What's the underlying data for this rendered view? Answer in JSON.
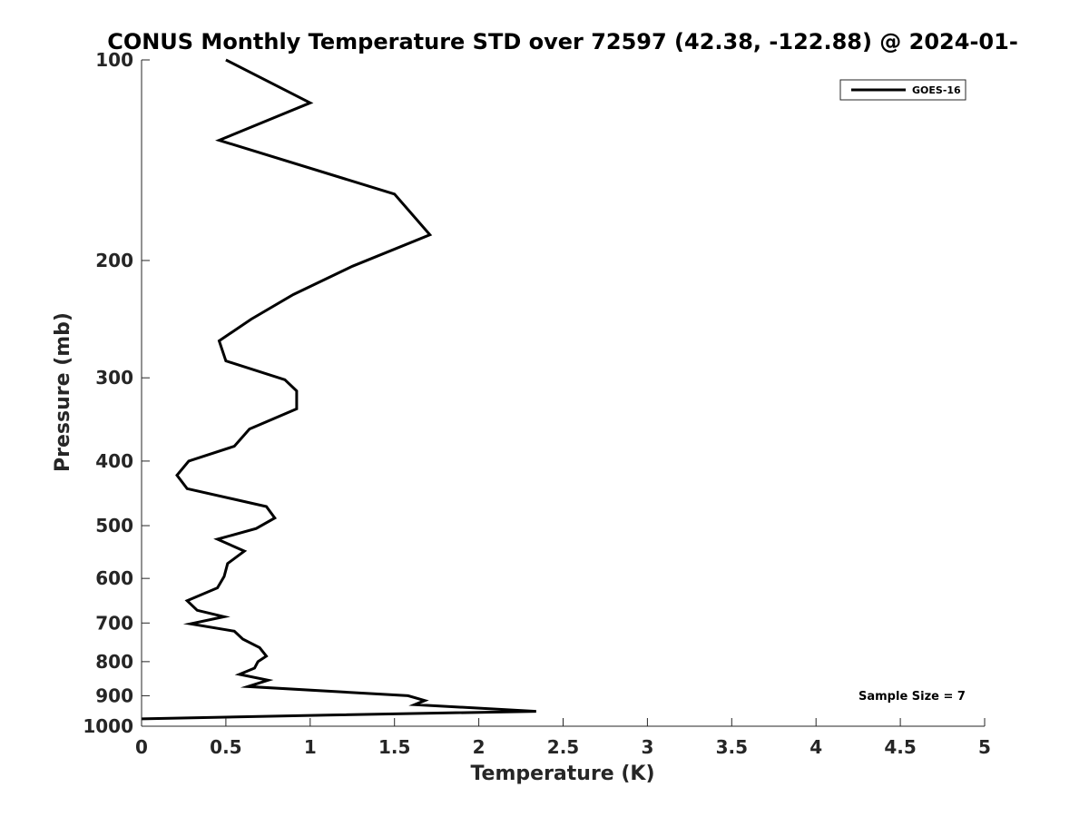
{
  "chart_data": {
    "type": "line",
    "title": "CONUS Monthly Temperature STD over 72597 (42.38, -122.88) @ 2024-01-",
    "xlabel": "Temperature (K)",
    "ylabel": "Pressure (mb)",
    "xlim": [
      0,
      5
    ],
    "ylim": [
      1000,
      100
    ],
    "yscale": "log",
    "y_reversed": true,
    "grid": false,
    "legend_placement": "top-right",
    "x_ticks": [
      "0",
      "0.5",
      "1",
      "1.5",
      "2",
      "2.5",
      "3",
      "3.5",
      "4",
      "4.5",
      "5"
    ],
    "y_ticks": [
      "100",
      "200",
      "300",
      "400",
      "500",
      "600",
      "700",
      "800",
      "900",
      "1000"
    ],
    "annotation": "Sample Size = 7",
    "series": [
      {
        "name": "GOES-16",
        "color": "#000000",
        "points": [
          [
            0.5,
            100
          ],
          [
            1.0,
            116
          ],
          [
            0.46,
            132
          ],
          [
            1.5,
            159
          ],
          [
            1.71,
            183
          ],
          [
            1.25,
            204
          ],
          [
            0.9,
            225
          ],
          [
            0.65,
            245
          ],
          [
            0.46,
            264
          ],
          [
            0.5,
            283
          ],
          [
            0.85,
            302
          ],
          [
            0.92,
            314
          ],
          [
            0.92,
            334
          ],
          [
            0.64,
            358
          ],
          [
            0.55,
            380
          ],
          [
            0.28,
            400
          ],
          [
            0.21,
            420
          ],
          [
            0.27,
            440
          ],
          [
            0.74,
            468
          ],
          [
            0.79,
            487
          ],
          [
            0.68,
            505
          ],
          [
            0.45,
            524
          ],
          [
            0.61,
            546
          ],
          [
            0.51,
            570
          ],
          [
            0.49,
            596
          ],
          [
            0.45,
            620
          ],
          [
            0.27,
            648
          ],
          [
            0.33,
            670
          ],
          [
            0.49,
            685
          ],
          [
            0.29,
            702
          ],
          [
            0.55,
            720
          ],
          [
            0.6,
            740
          ],
          [
            0.7,
            762
          ],
          [
            0.74,
            785
          ],
          [
            0.69,
            800
          ],
          [
            0.67,
            818
          ],
          [
            0.58,
            836
          ],
          [
            0.75,
            853
          ],
          [
            0.63,
            872
          ],
          [
            1.58,
            900
          ],
          [
            1.68,
            915
          ],
          [
            1.62,
            928
          ],
          [
            2.34,
            950
          ],
          [
            1.1,
            962
          ],
          [
            0.0,
            975
          ]
        ]
      }
    ]
  }
}
